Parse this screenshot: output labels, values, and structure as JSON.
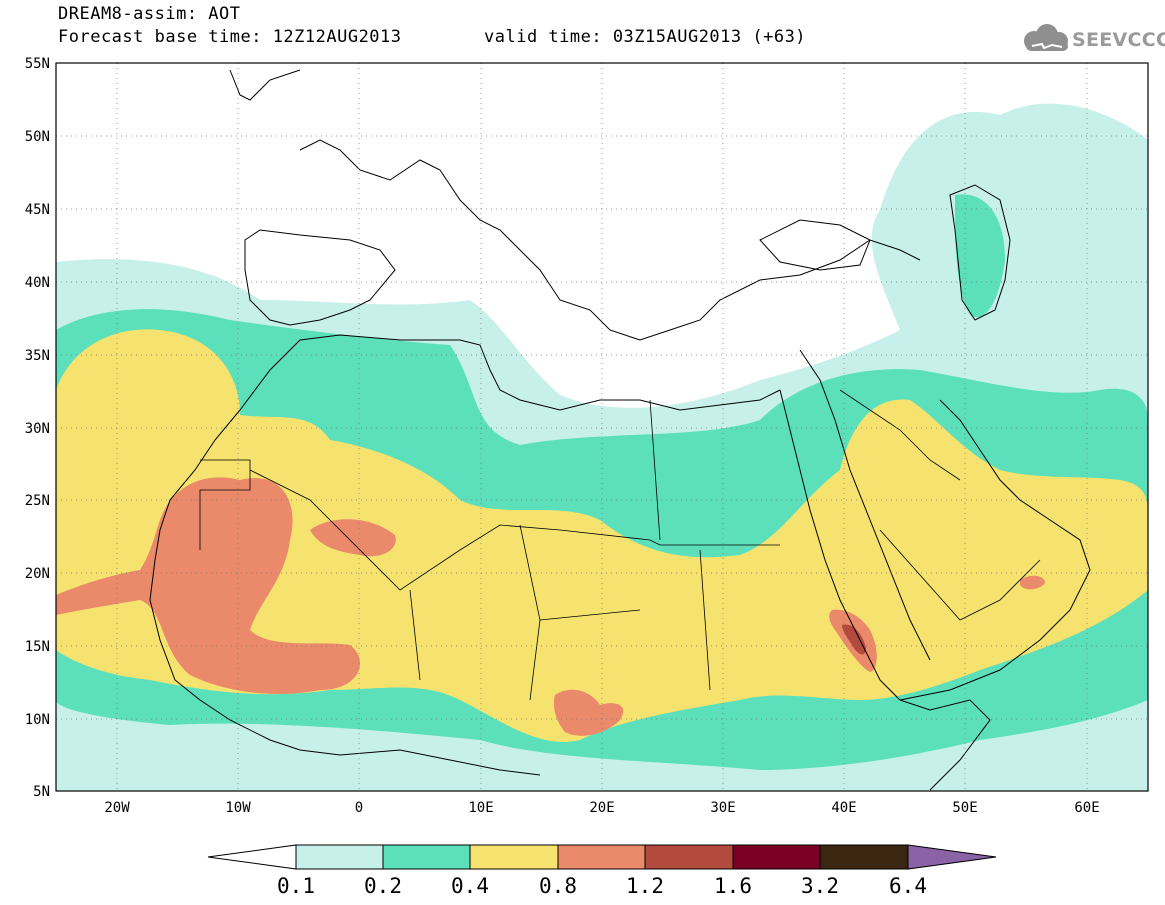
{
  "header": {
    "title": "DREAM8-assim: AOT",
    "base_time": "Forecast base time: 12Z12AUG2013",
    "valid_time": "valid time: 03Z15AUG2013 (+63)",
    "logo_text": "SEEVCCC"
  },
  "map": {
    "lat_labels": [
      "55N",
      "50N",
      "45N",
      "40N",
      "35N",
      "30N",
      "25N",
      "20N",
      "15N",
      "10N",
      "5N"
    ],
    "lon_labels": [
      "20W",
      "10W",
      "0",
      "10E",
      "20E",
      "30E",
      "40E",
      "50E",
      "60E"
    ],
    "colors": {
      "land_line": "#000000",
      "grid": "#555555",
      "background": "#ffffff"
    }
  },
  "legend": {
    "levels": [
      "0.1",
      "0.2",
      "0.4",
      "0.8",
      "1.2",
      "1.6",
      "3.2",
      "6.4"
    ],
    "colors": [
      "#ffffff",
      "#c6f0e9",
      "#5ce0bc",
      "#f6e26e",
      "#ea8a6a",
      "#b24a3e",
      "#7a0026",
      "#3c2612",
      "#8a62a6"
    ]
  }
}
